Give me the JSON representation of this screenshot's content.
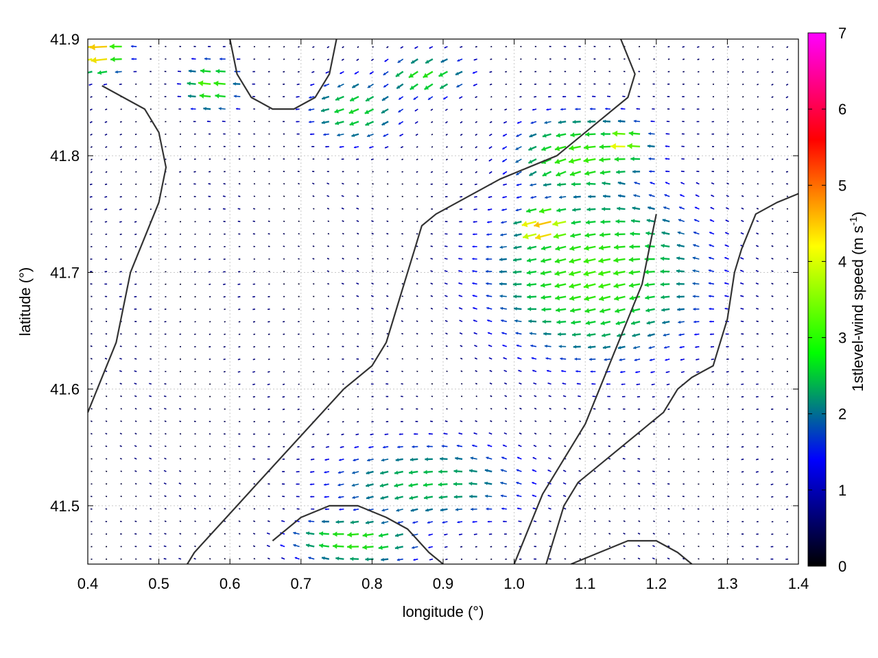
{
  "chart_data": {
    "type": "vector-field",
    "title": "",
    "xlabel": "longitude (°)",
    "ylabel": "latitude (°)",
    "xlim": [
      0.4,
      1.4
    ],
    "ylim": [
      41.45,
      41.9
    ],
    "xticks": [
      "0.4",
      "0.5",
      "0.6",
      "0.7",
      "0.8",
      "0.9",
      "1.0",
      "1.1",
      "1.2",
      "1.3",
      "1.4"
    ],
    "yticks": [
      "41.5",
      "41.6",
      "41.7",
      "41.8",
      "41.9"
    ],
    "grid": true,
    "colorbar": {
      "label": "1stlevel-wind speed (m s",
      "label_sup": "-1",
      "label_end": ")",
      "range": [
        0,
        7
      ],
      "ticks": [
        "0",
        "1",
        "2",
        "3",
        "4",
        "5",
        "6",
        "7"
      ],
      "colors": [
        "#000000",
        "#0000ff",
        "#00ff00",
        "#ffff00",
        "#ff0000",
        "#ff00ff"
      ]
    },
    "wind_regions": [
      {
        "name": "east-broad",
        "lon": 1.12,
        "lat": 41.7,
        "r_lon": 0.2,
        "r_lat": 0.1,
        "speed": 2.6
      },
      {
        "name": "north-east",
        "lon": 1.1,
        "lat": 41.8,
        "r_lon": 0.13,
        "r_lat": 0.05,
        "speed": 2.6
      },
      {
        "name": "yellow-core-mid",
        "lon": 1.05,
        "lat": 41.74,
        "r_lon": 0.05,
        "r_lat": 0.025,
        "speed": 3.8
      },
      {
        "name": "yellow-core-east",
        "lon": 1.16,
        "lat": 41.81,
        "r_lon": 0.05,
        "r_lat": 0.025,
        "speed": 3.1
      },
      {
        "name": "south-band",
        "lon": 0.88,
        "lat": 41.52,
        "r_lon": 0.2,
        "r_lat": 0.05,
        "speed": 2.0
      },
      {
        "name": "south-west-band",
        "lon": 0.78,
        "lat": 41.47,
        "r_lon": 0.12,
        "r_lat": 0.03,
        "speed": 2.5
      },
      {
        "name": "north-west-corner",
        "lon": 0.42,
        "lat": 41.89,
        "r_lon": 0.05,
        "r_lat": 0.025,
        "speed": 3.8
      },
      {
        "name": "north-centre",
        "lon": 0.78,
        "lat": 41.84,
        "r_lon": 0.09,
        "r_lat": 0.04,
        "speed": 2.2
      },
      {
        "name": "north-strip",
        "lon": 0.88,
        "lat": 41.87,
        "r_lon": 0.08,
        "r_lat": 0.025,
        "speed": 2.4
      },
      {
        "name": "west-lobe",
        "lon": 0.58,
        "lat": 41.86,
        "r_lon": 0.05,
        "r_lat": 0.03,
        "speed": 2.7
      }
    ],
    "contours": [
      [
        [
          1.41,
          41.77
        ],
        [
          1.37,
          41.76
        ],
        [
          1.34,
          41.75
        ],
        [
          1.32,
          41.72
        ],
        [
          1.31,
          41.7
        ],
        [
          1.3,
          41.66
        ],
        [
          1.29,
          41.64
        ],
        [
          1.28,
          41.62
        ],
        [
          1.25,
          41.61
        ],
        [
          1.23,
          41.6
        ],
        [
          1.21,
          41.58
        ],
        [
          1.19,
          41.57
        ],
        [
          1.17,
          41.56
        ],
        [
          1.15,
          41.55
        ],
        [
          1.13,
          41.54
        ],
        [
          1.11,
          41.53
        ],
        [
          1.09,
          41.52
        ],
        [
          1.07,
          41.5
        ],
        [
          1.06,
          41.48
        ],
        [
          1.05,
          41.46
        ],
        [
          1.04,
          41.44
        ]
      ],
      [
        [
          1.15,
          41.9
        ],
        [
          1.17,
          41.87
        ],
        [
          1.16,
          41.85
        ],
        [
          1.14,
          41.84
        ],
        [
          1.12,
          41.83
        ],
        [
          1.1,
          41.82
        ],
        [
          1.08,
          41.81
        ],
        [
          1.06,
          41.8
        ],
        [
          1.02,
          41.79
        ],
        [
          0.98,
          41.78
        ],
        [
          0.95,
          41.77
        ],
        [
          0.92,
          41.76
        ],
        [
          0.89,
          41.75
        ],
        [
          0.87,
          41.74
        ],
        [
          0.86,
          41.72
        ],
        [
          0.85,
          41.7
        ],
        [
          0.84,
          41.68
        ],
        [
          0.83,
          41.66
        ],
        [
          0.82,
          41.64
        ],
        [
          0.8,
          41.62
        ],
        [
          0.76,
          41.6
        ],
        [
          0.73,
          41.58
        ],
        [
          0.7,
          41.56
        ],
        [
          0.67,
          41.54
        ],
        [
          0.64,
          41.52
        ],
        [
          0.61,
          41.5
        ],
        [
          0.58,
          41.48
        ],
        [
          0.55,
          41.46
        ],
        [
          0.53,
          41.44
        ]
      ],
      [
        [
          1.2,
          41.75
        ],
        [
          1.19,
          41.72
        ],
        [
          1.18,
          41.69
        ],
        [
          1.16,
          41.66
        ],
        [
          1.14,
          41.63
        ],
        [
          1.12,
          41.6
        ],
        [
          1.1,
          41.57
        ],
        [
          1.07,
          41.54
        ],
        [
          1.04,
          41.51
        ],
        [
          1.02,
          41.48
        ],
        [
          1.0,
          41.45
        ]
      ],
      [
        [
          0.75,
          41.9
        ],
        [
          0.74,
          41.87
        ],
        [
          0.72,
          41.85
        ],
        [
          0.69,
          41.84
        ],
        [
          0.66,
          41.84
        ],
        [
          0.63,
          41.85
        ],
        [
          0.61,
          41.87
        ],
        [
          0.6,
          41.9
        ]
      ],
      [
        [
          0.42,
          41.86
        ],
        [
          0.45,
          41.85
        ],
        [
          0.48,
          41.84
        ],
        [
          0.5,
          41.82
        ],
        [
          0.51,
          41.79
        ],
        [
          0.5,
          41.76
        ],
        [
          0.48,
          41.73
        ],
        [
          0.46,
          41.7
        ],
        [
          0.45,
          41.67
        ],
        [
          0.44,
          41.64
        ],
        [
          0.42,
          41.61
        ],
        [
          0.4,
          41.58
        ]
      ],
      [
        [
          0.66,
          41.47
        ],
        [
          0.7,
          41.49
        ],
        [
          0.74,
          41.5
        ],
        [
          0.78,
          41.5
        ],
        [
          0.82,
          41.49
        ],
        [
          0.85,
          41.48
        ],
        [
          0.88,
          41.46
        ],
        [
          0.9,
          41.45
        ]
      ],
      [
        [
          1.08,
          41.45
        ],
        [
          1.12,
          41.46
        ],
        [
          1.16,
          41.47
        ],
        [
          1.2,
          41.47
        ],
        [
          1.23,
          41.46
        ],
        [
          1.25,
          41.45
        ]
      ]
    ]
  }
}
